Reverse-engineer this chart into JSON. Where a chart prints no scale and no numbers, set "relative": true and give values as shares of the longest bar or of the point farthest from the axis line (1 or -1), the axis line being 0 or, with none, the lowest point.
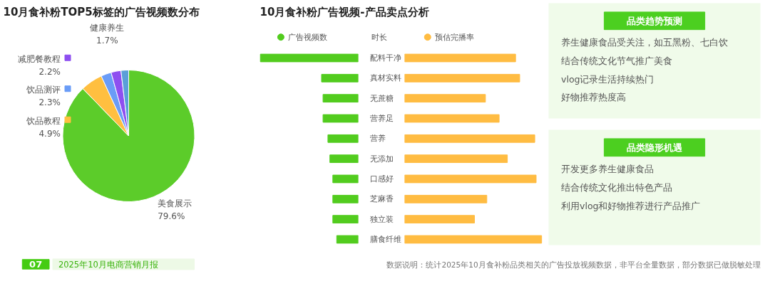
{
  "chart_data": [
    {
      "type": "pie",
      "title": "10月食补粉TOP5标签的广告视频数分布",
      "categories": [
        "美食展示",
        "饮品教程",
        "饮品测评",
        "减肥餐教程",
        "健康养生"
      ],
      "values": [
        79.6,
        4.9,
        2.3,
        2.2,
        1.7
      ],
      "value_labels": [
        "79.6%",
        "4.9%",
        "2.3%",
        "2.2%",
        "1.7%"
      ],
      "colors": [
        "#5ccc2a",
        "#ffbf40",
        "#6a9cf7",
        "#8e4ff0",
        "#5a9fd8"
      ],
      "legend": "top left",
      "annotations": [
        "07",
        "2025年10月电商营销月报"
      ]
    },
    {
      "type": "bar",
      "orientation": "horizontal",
      "relative": true,
      "title": "10月食补粉广告视频-产品卖点分析",
      "categories": [
        "配料干净",
        "真材实料",
        "无蔗糖",
        "营养足",
        "营养",
        "无添加",
        "口感好",
        "芝麻香",
        "独立装",
        "膳食纤维"
      ],
      "legend": "top",
      "series": [
        {
          "name": "广告视频数",
          "color": "#52cc1e",
          "values": [
            1.0,
            0.375,
            0.36,
            0.36,
            0.31,
            0.29,
            0.26,
            0.26,
            0.26,
            0.22
          ]
        }
      ],
      "annotations": [
        "时长"
      ]
    },
    {
      "type": "bar",
      "orientation": "horizontal",
      "relative": true,
      "tick_labels": false,
      "categories": [
        null,
        null,
        null,
        null,
        null,
        null,
        null,
        null,
        null,
        null
      ],
      "legend": "top",
      "series": [
        {
          "name": "预估完播率",
          "color": "#ffbc42",
          "values": [
            0.81,
            0.84,
            0.59,
            0.69,
            0.95,
            0.75,
            0.96,
            0.6,
            0.51,
            1.0
          ]
        }
      ],
      "annotations": [
        "数据说明：统计2025年10月食补粉品类相关的广告投放视频数据，非平台全量数据，部分数据已做脱敏处理"
      ]
    },
    {
      "type": "other",
      "title": "品类趋势预测",
      "annotations": [
        "养生健康食品受关注，如五黑粉、七白饮",
        "结合传统文化节气推广美食",
        "vlog记录生活持续热门",
        "好物推荐热度高"
      ]
    },
    {
      "type": "other",
      "title": "品类隐形机遇",
      "annotations": [
        "开发更多养生健康食品",
        "结合传统文化推出特色产品",
        "利用vlog和好物推荐进行产品推广"
      ]
    }
  ]
}
